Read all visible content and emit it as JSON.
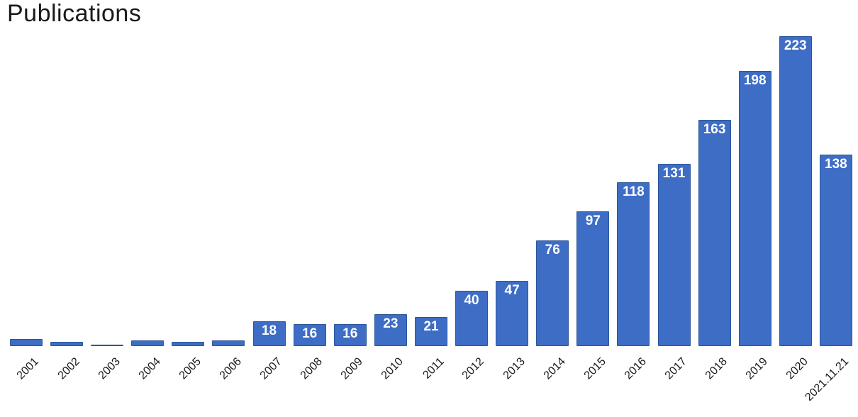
{
  "title": "Publications",
  "colors": {
    "bar_fill": "#3e6dc5",
    "bar_border": "#2d5699",
    "value_label": "#ffffff",
    "axis_label": "#1a1a1a",
    "title_text": "#1a1a1a",
    "background": "#ffffff"
  },
  "chart_data": {
    "type": "bar",
    "title": "Publications",
    "categories": [
      "2001",
      "2002",
      "2003",
      "2004",
      "2005",
      "2006",
      "2007",
      "2008",
      "2009",
      "2010",
      "2011",
      "2012",
      "2013",
      "2014",
      "2015",
      "2016",
      "2017",
      "2018",
      "2019",
      "2020",
      "2021.11.21"
    ],
    "values": [
      5,
      3,
      1,
      4,
      3,
      4,
      18,
      16,
      16,
      23,
      21,
      40,
      47,
      76,
      97,
      118,
      131,
      163,
      198,
      223,
      138
    ],
    "data_labels": [
      "",
      "",
      "",
      "",
      "",
      "",
      "18",
      "16",
      "16",
      "23",
      "21",
      "40",
      "47",
      "76",
      "97",
      "118",
      "131",
      "163",
      "198",
      "223",
      "138"
    ],
    "xlabel": "",
    "ylabel": "",
    "ylim": [
      0,
      240
    ],
    "grid": false,
    "legend": false,
    "axis_line": false,
    "label_position": "inside-top",
    "tick_label_rotation_deg": 45
  }
}
